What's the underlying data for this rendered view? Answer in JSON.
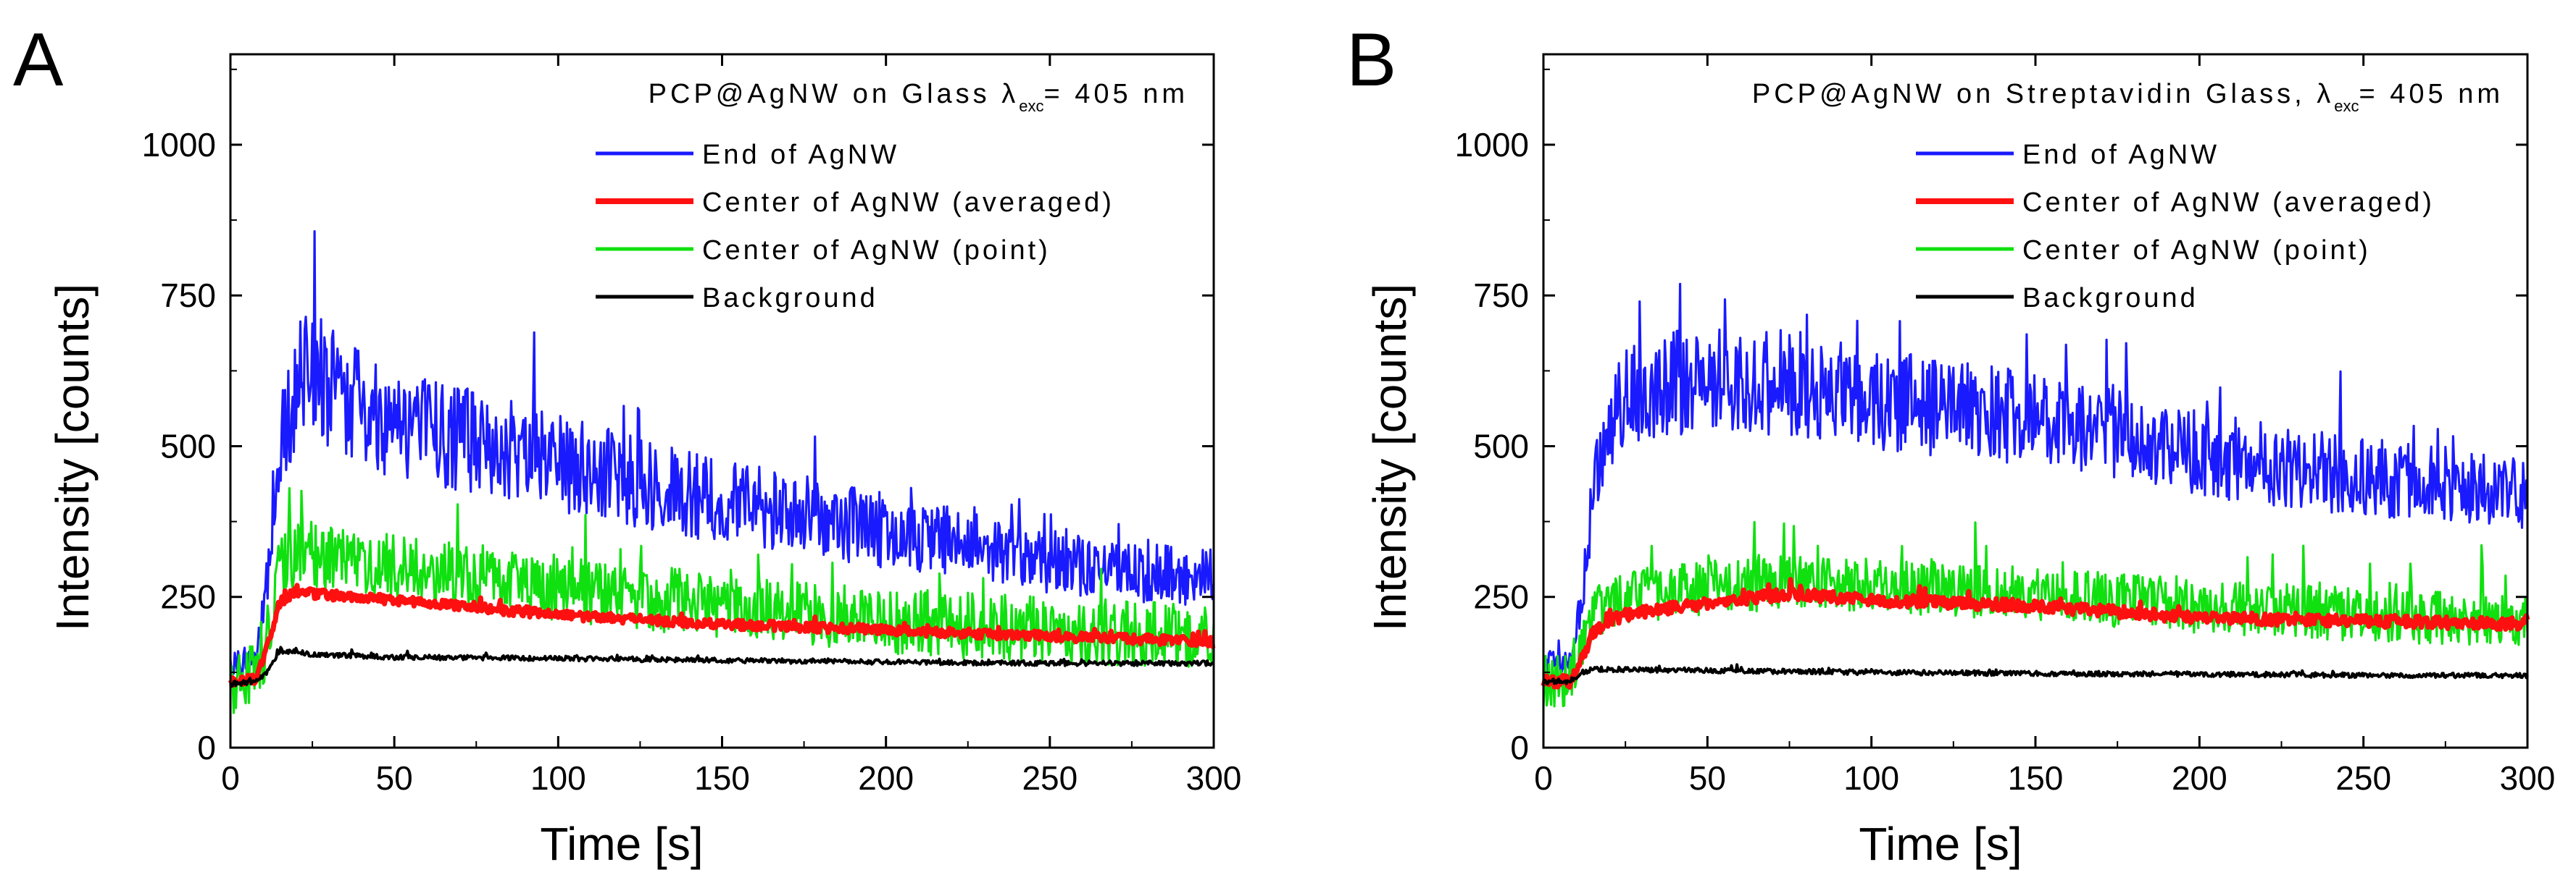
{
  "chart_data": [
    {
      "panel_label": "A",
      "type": "line",
      "annotation": {
        "prefix": "PCP@AgNW on Glass ",
        "symbol": "λ",
        "subscript": "exc",
        "suffix": "= 405 nm"
      },
      "xlabel": "Time [s]",
      "ylabel": "Intensity [counts]",
      "xlim": [
        0,
        300
      ],
      "ylim": [
        0,
        1150
      ],
      "xticks": [
        0,
        50,
        100,
        150,
        200,
        250,
        300
      ],
      "yticks": [
        0,
        250,
        500,
        750,
        1000
      ],
      "grid": false,
      "legend_position": "top-right",
      "series": [
        {
          "name": "End of AgNW",
          "color": "#1a1aff",
          "x": [
            0,
            8,
            12,
            15,
            20,
            25,
            30,
            40,
            50,
            60,
            80,
            100,
            125,
            150,
            175,
            200,
            225,
            250,
            275,
            300
          ],
          "y": [
            140,
            150,
            300,
            500,
            600,
            620,
            600,
            560,
            540,
            530,
            500,
            470,
            440,
            410,
            385,
            360,
            335,
            310,
            290,
            280
          ],
          "noise": 95,
          "noise_scale_with_value": true
        },
        {
          "name": "Center of AgNW (averaged)",
          "color": "#ff1010",
          "x": [
            0,
            8,
            12,
            15,
            20,
            25,
            50,
            100,
            150,
            200,
            250,
            300
          ],
          "y": [
            110,
            115,
            180,
            240,
            260,
            255,
            245,
            220,
            205,
            195,
            185,
            175
          ],
          "noise": 8
        },
        {
          "name": "Center of AgNW (point)",
          "color": "#10e010",
          "x": [
            0,
            8,
            12,
            15,
            20,
            25,
            50,
            100,
            150,
            200,
            250,
            300
          ],
          "y": [
            110,
            115,
            200,
            290,
            320,
            320,
            300,
            265,
            235,
            210,
            195,
            185
          ],
          "noise": 55
        },
        {
          "name": "Background",
          "color": "#000000",
          "x": [
            0,
            8,
            12,
            15,
            18,
            25,
            50,
            100,
            150,
            200,
            250,
            300
          ],
          "y": [
            105,
            110,
            130,
            160,
            160,
            155,
            150,
            148,
            145,
            142,
            140,
            140
          ],
          "noise": 4
        }
      ]
    },
    {
      "panel_label": "B",
      "type": "line",
      "annotation": {
        "prefix": "PCP@AgNW on Streptavidin Glass, ",
        "symbol": "λ",
        "subscript": "exc",
        "suffix": "= 405 nm"
      },
      "xlabel": "Time [s]",
      "ylabel": "Intensity [counts]",
      "xlim": [
        0,
        300
      ],
      "ylim": [
        0,
        1150
      ],
      "xticks": [
        0,
        50,
        100,
        150,
        200,
        250,
        300
      ],
      "yticks": [
        0,
        250,
        500,
        750,
        1000
      ],
      "grid": false,
      "legend_position": "top-right",
      "series": [
        {
          "name": "End of AgNW",
          "color": "#1a1aff",
          "x": [
            0,
            8,
            12,
            15,
            20,
            25,
            30,
            50,
            75,
            100,
            125,
            150,
            175,
            200,
            225,
            250,
            275,
            300
          ],
          "y": [
            140,
            140,
            250,
            420,
            530,
            580,
            600,
            610,
            605,
            580,
            560,
            545,
            520,
            490,
            465,
            450,
            440,
            420
          ],
          "noise": 80,
          "noise_scale_with_value": true
        },
        {
          "name": "Center of AgNW (averaged)",
          "color": "#ff1010",
          "x": [
            0,
            8,
            12,
            15,
            20,
            25,
            50,
            75,
            100,
            125,
            150,
            175,
            200,
            250,
            300
          ],
          "y": [
            110,
            110,
            150,
            190,
            210,
            220,
            240,
            255,
            245,
            240,
            235,
            225,
            215,
            210,
            205
          ],
          "noise": 10
        },
        {
          "name": "Center of AgNW (point)",
          "color": "#10e010",
          "x": [
            0,
            8,
            12,
            15,
            20,
            25,
            50,
            75,
            100,
            150,
            200,
            250,
            300
          ],
          "y": [
            110,
            110,
            160,
            220,
            240,
            250,
            265,
            275,
            270,
            255,
            235,
            220,
            210
          ],
          "noise": 45
        },
        {
          "name": "Background",
          "color": "#000000",
          "x": [
            0,
            8,
            12,
            15,
            20,
            50,
            100,
            150,
            200,
            250,
            300
          ],
          "y": [
            110,
            110,
            125,
            130,
            130,
            128,
            125,
            123,
            122,
            120,
            120
          ],
          "noise": 4
        }
      ]
    }
  ]
}
